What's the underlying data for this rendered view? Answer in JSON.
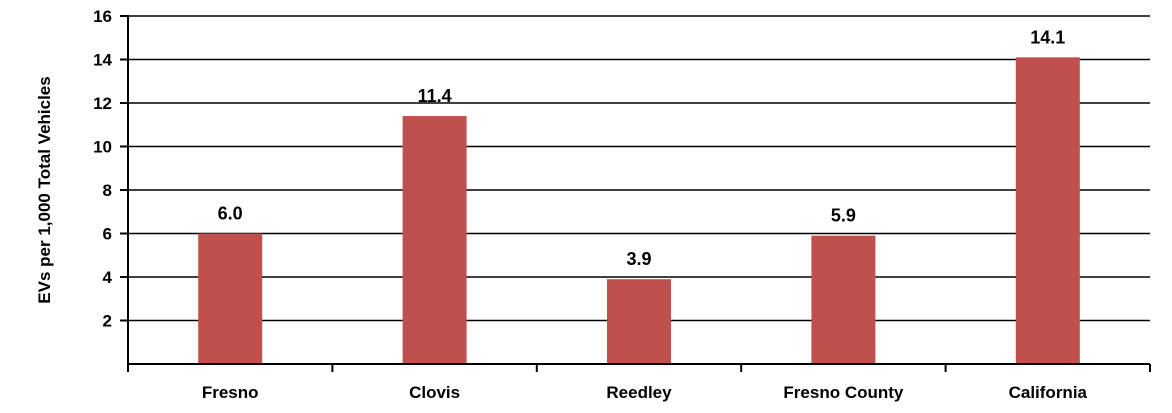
{
  "chart_data": {
    "type": "bar",
    "title": "",
    "xlabel": "",
    "ylabel": "EVs per 1,000 Total Vehicles",
    "categories": [
      "Fresno",
      "Clovis",
      "Reedley",
      "Fresno County",
      "California"
    ],
    "values": [
      6.0,
      11.4,
      3.9,
      5.9,
      14.1
    ],
    "data_labels": [
      "6.0",
      "11.4",
      "3.9",
      "5.9",
      "14.1"
    ],
    "ylim": [
      0,
      16
    ],
    "yticks": [
      2,
      4,
      6,
      8,
      10,
      12,
      14,
      16
    ],
    "grid": true,
    "legend": "none",
    "bar_color": "#c0504d"
  }
}
